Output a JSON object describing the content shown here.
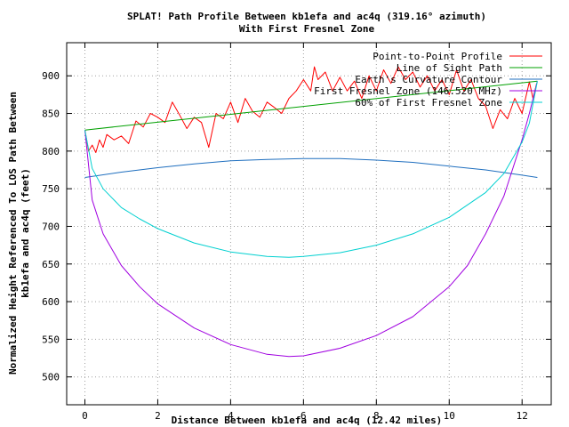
{
  "chart_data": {
    "type": "line",
    "title": "SPLAT! Path Profile Between kb1efa and ac4q (319.16° azimuth)",
    "subtitle": "With First Fresnel Zone",
    "xlabel": "Distance Between kb1efa and ac4q (12.42 miles)",
    "ylabel_line1": "Normalized Height Referenced To LOS Path Between",
    "ylabel_line2": "kb1efa and ac4q (feet)",
    "xlim": [
      -0.5,
      12.8
    ],
    "ylim": [
      463,
      944
    ],
    "x_ticks": [
      0,
      2,
      4,
      6,
      8,
      10,
      12
    ],
    "y_ticks": [
      500,
      550,
      600,
      650,
      700,
      750,
      800,
      850,
      900
    ],
    "grid": true,
    "legend_position": "top-right",
    "series": [
      {
        "name": "Point-to-Point Profile",
        "color": "#ff0000",
        "x": [
          0,
          0.1,
          0.2,
          0.3,
          0.4,
          0.5,
          0.6,
          0.8,
          1.0,
          1.2,
          1.4,
          1.6,
          1.8,
          2.0,
          2.2,
          2.4,
          2.6,
          2.8,
          3.0,
          3.2,
          3.4,
          3.6,
          3.8,
          4.0,
          4.2,
          4.4,
          4.6,
          4.8,
          5.0,
          5.2,
          5.4,
          5.6,
          5.8,
          6.0,
          6.2,
          6.3,
          6.4,
          6.6,
          6.8,
          7.0,
          7.2,
          7.4,
          7.6,
          7.8,
          8.0,
          8.2,
          8.4,
          8.6,
          8.8,
          9.0,
          9.2,
          9.4,
          9.6,
          9.8,
          10.0,
          10.2,
          10.4,
          10.6,
          10.8,
          11.0,
          11.2,
          11.4,
          11.6,
          11.8,
          12.0,
          12.2,
          12.3,
          12.4
        ],
        "y": [
          828,
          800,
          808,
          798,
          815,
          805,
          822,
          815,
          820,
          810,
          840,
          832,
          850,
          845,
          838,
          865,
          848,
          830,
          845,
          838,
          805,
          850,
          843,
          865,
          838,
          870,
          853,
          845,
          865,
          858,
          850,
          870,
          880,
          895,
          880,
          912,
          895,
          905,
          880,
          898,
          880,
          893,
          870,
          900,
          880,
          908,
          890,
          912,
          895,
          905,
          885,
          900,
          880,
          895,
          875,
          908,
          880,
          895,
          870,
          860,
          830,
          855,
          843,
          870,
          850,
          892,
          870,
          890
        ]
      },
      {
        "name": "Line of Sight Path",
        "color": "#00a000",
        "x": [
          0,
          12.42
        ],
        "y": [
          828,
          893
        ]
      },
      {
        "name": "Earth's Curvature Contour",
        "color": "#1f6fbf",
        "x": [
          0,
          1,
          2,
          3,
          4,
          5,
          6,
          7,
          8,
          9,
          10,
          11,
          12,
          12.42
        ],
        "y": [
          765,
          772,
          778,
          783,
          787,
          789,
          790,
          790,
          788,
          785,
          780,
          775,
          768,
          765
        ]
      },
      {
        "name": "First Fresnel Zone (146.520 MHz)",
        "color": "#a000e0",
        "x": [
          0,
          0.2,
          0.5,
          1,
          1.5,
          2,
          3,
          4,
          5,
          5.6,
          6,
          7,
          8,
          9,
          10,
          10.5,
          11,
          11.5,
          12,
          12.2,
          12.42
        ],
        "y": [
          828,
          735,
          690,
          648,
          620,
          597,
          565,
          543,
          530,
          527,
          528,
          538,
          555,
          580,
          620,
          648,
          690,
          740,
          815,
          850,
          893
        ]
      },
      {
        "name": "60% of First Fresnel Zone",
        "color": "#00d0d0",
        "x": [
          0,
          0.2,
          0.5,
          1,
          1.5,
          2,
          3,
          4,
          5,
          5.6,
          6,
          7,
          8,
          9,
          10,
          11,
          11.5,
          12,
          12.2,
          12.42
        ],
        "y": [
          828,
          777,
          750,
          725,
          710,
          697,
          678,
          666,
          660,
          659,
          660,
          665,
          675,
          690,
          712,
          745,
          770,
          812,
          837,
          893
        ]
      }
    ]
  }
}
